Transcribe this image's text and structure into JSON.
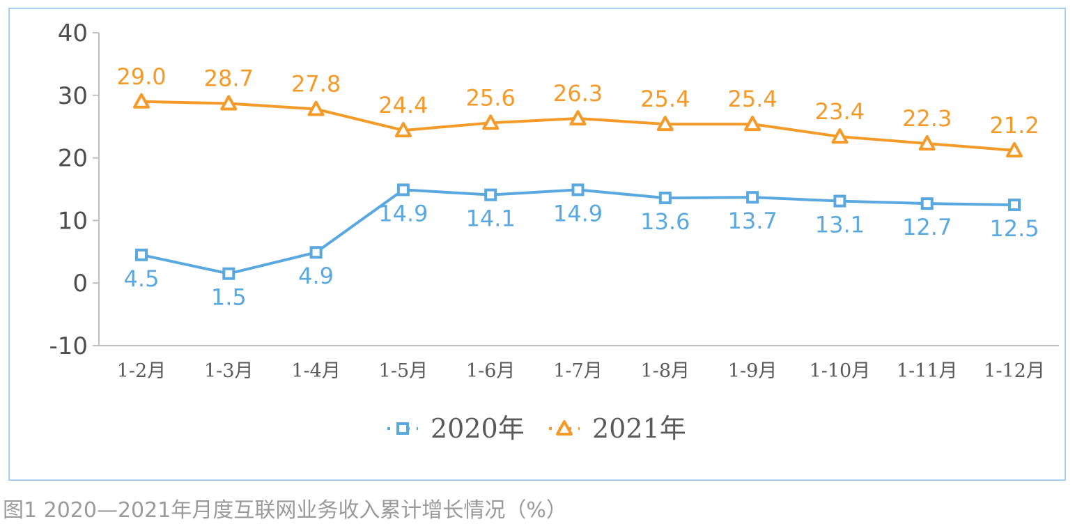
{
  "caption": "图1  2020—2021年月度互联网业务收入累计增长情况（%）",
  "chart_data": {
    "type": "line",
    "categories": [
      "1-2月",
      "1-3月",
      "1-4月",
      "1-5月",
      "1-6月",
      "1-7月",
      "1-8月",
      "1-9月",
      "1-10月",
      "1-11月",
      "1-12月"
    ],
    "y_ticks": [
      "40",
      "30",
      "20",
      "10",
      "0",
      "-10"
    ],
    "ylim": [
      -10,
      40
    ],
    "grid": false,
    "legend_position": "bottom",
    "series": [
      {
        "name": "2020年",
        "color": "#5aa8e0",
        "marker": "square",
        "values": [
          4.5,
          1.5,
          4.9,
          14.9,
          14.1,
          14.9,
          13.6,
          13.7,
          13.1,
          12.7,
          12.5
        ],
        "labels": [
          "4.5",
          "1.5",
          "4.9",
          "14.9",
          "14.1",
          "14.9",
          "13.6",
          "13.7",
          "13.1",
          "12.7",
          "12.5"
        ]
      },
      {
        "name": "2021年",
        "color": "#f39a28",
        "marker": "triangle",
        "values": [
          29.0,
          28.7,
          27.8,
          24.4,
          25.6,
          26.3,
          25.4,
          25.4,
          23.4,
          22.3,
          21.2
        ],
        "labels": [
          "29.0",
          "28.7",
          "27.8",
          "24.4",
          "25.6",
          "26.3",
          "25.4",
          "25.4",
          "23.4",
          "22.3",
          "21.2"
        ]
      }
    ]
  }
}
